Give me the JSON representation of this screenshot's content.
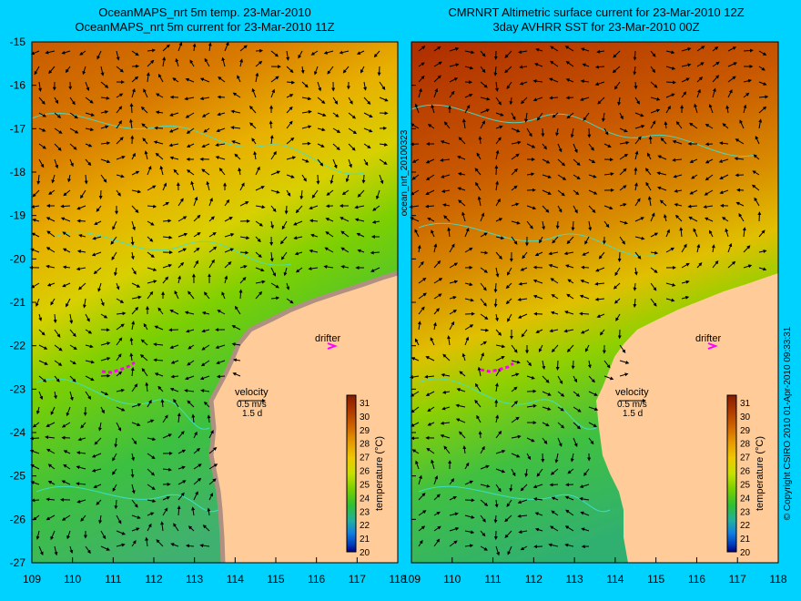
{
  "titles": {
    "left_line1": "OceanMAPS_nrt 5m temp. 23-Mar-2010",
    "left_line2": "OceanMAPS_nrt 5m current for 23-Mar-2010 11Z",
    "right_line1": "CMRNRT Altimetric surface current for 23-Mar-2010 12Z",
    "right_line2": "3day AVHRR SST for 23-Mar-2010 00Z"
  },
  "axes": {
    "lat_ticks": [
      "-15",
      "-16",
      "-17",
      "-18",
      "-19",
      "-20",
      "-21",
      "-22",
      "-23",
      "-24",
      "-25",
      "-26",
      "-27"
    ],
    "lon_ticks": [
      "109",
      "110",
      "111",
      "112",
      "113",
      "114",
      "115",
      "116",
      "117",
      "118"
    ]
  },
  "annotations": {
    "drifter": "drifter",
    "velocity": "velocity",
    "velocity_scale": "0.5 m/s",
    "velocity_time": "1.5 d"
  },
  "colorbar": {
    "label": "temperature (°C)",
    "ticks": [
      "31",
      "30",
      "29",
      "28",
      "27",
      "26",
      "25",
      "24",
      "23",
      "22",
      "21",
      "20"
    ],
    "colors": [
      "#8a1a00",
      "#b03a00",
      "#d06400",
      "#e69a00",
      "#f0c800",
      "#c8e000",
      "#78d000",
      "#30c030",
      "#20b0a0",
      "#1080e0",
      "#0040c0",
      "#000080"
    ]
  },
  "side_text": {
    "product": "ocean_nrt_20100323",
    "copyright": "© Copyright CSIRO 2010   01-Apr-2010 09:33:31"
  },
  "colors": {
    "background": "#00d2ff",
    "land": "#ffcc99",
    "coast_contour": "#40e0d0",
    "drifter": "#ff00ff"
  }
}
